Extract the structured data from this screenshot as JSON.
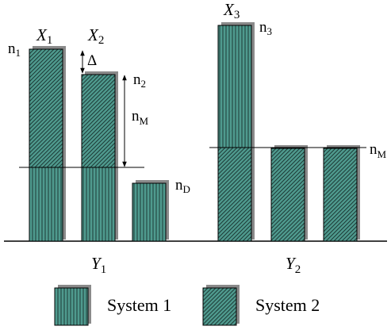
{
  "colors": {
    "fill": "#4f9a8e",
    "hatch": "#1c3a36",
    "shadow": "#8a8a8a",
    "line": "#000000"
  },
  "diagram": {
    "bar_labels": {
      "x1": {
        "base": "X",
        "sub": "1"
      },
      "x2": {
        "base": "X",
        "sub": "2"
      },
      "x3": {
        "base": "X",
        "sub": "3"
      }
    },
    "level_labels": {
      "n1": {
        "base": "n",
        "sub": "1"
      },
      "n2": {
        "base": "n",
        "sub": "2"
      },
      "n3": {
        "base": "n",
        "sub": "3"
      },
      "nM_left": {
        "base": "n",
        "sub": "M"
      },
      "nM_right": {
        "base": "n",
        "sub": "M"
      },
      "nD": {
        "base": "n",
        "sub": "D"
      }
    },
    "delta_label": "Δ",
    "group_labels": {
      "y1": {
        "base": "Y",
        "sub": "1"
      },
      "y2": {
        "base": "Y",
        "sub": "2"
      }
    }
  },
  "legend": {
    "system1": "System 1",
    "system2": "System 2"
  }
}
